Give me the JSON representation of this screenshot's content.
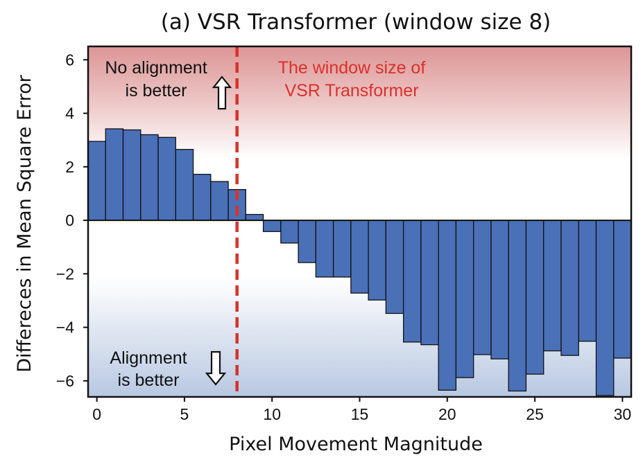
{
  "chart_data": {
    "type": "bar",
    "title": "(a) VSR Transformer (window size 8)",
    "xlabel": "Pixel Movement Magnitude",
    "ylabel": "Differeces in Mean Square Error",
    "xlim": [
      -0.5,
      30.5
    ],
    "ylim": [
      -6.6,
      6.5
    ],
    "xticks": [
      0,
      5,
      10,
      15,
      20,
      25,
      30
    ],
    "yticks": [
      -6,
      -4,
      -2,
      0,
      2,
      4,
      6
    ],
    "grid": false,
    "x": [
      0,
      1,
      2,
      3,
      4,
      5,
      6,
      7,
      8,
      9,
      10,
      11,
      12,
      13,
      14,
      15,
      16,
      17,
      18,
      19,
      20,
      21,
      22,
      23,
      24,
      25,
      26,
      27,
      28,
      29,
      30
    ],
    "values": [
      2.95,
      3.42,
      3.38,
      3.2,
      3.1,
      2.65,
      1.72,
      1.45,
      1.15,
      0.22,
      -0.42,
      -0.85,
      -1.58,
      -2.12,
      -2.12,
      -2.72,
      -2.98,
      -3.48,
      -4.55,
      -4.65,
      -6.35,
      -5.88,
      -5.02,
      -5.18,
      -6.38,
      -5.75,
      -4.88,
      -5.05,
      -4.52,
      -6.55,
      -5.15
    ],
    "bar_color": "#4a70b8",
    "vline": {
      "x": 8,
      "color": "#d9312a",
      "style": "dashed"
    },
    "background": {
      "top_color": "#d98a8a",
      "bottom_color": "#b8c8e2"
    },
    "annotations": {
      "top_left": [
        "No alignment",
        "is better"
      ],
      "bottom_left": [
        "Alignment",
        "is better"
      ],
      "vline_label": [
        "The window size of",
        "VSR Transformer"
      ]
    }
  }
}
